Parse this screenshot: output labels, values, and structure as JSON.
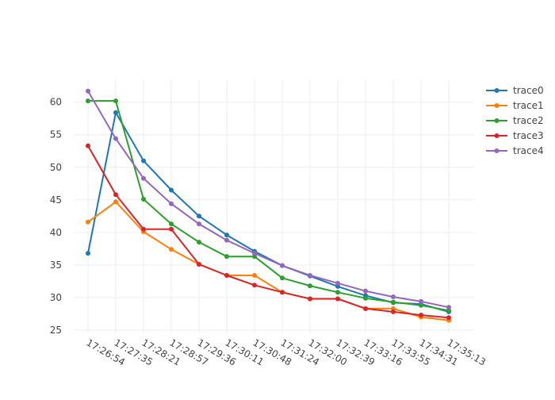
{
  "chart_data": {
    "type": "line",
    "title": "",
    "xlabel": "",
    "ylabel": "",
    "categories": [
      "17:26:54",
      "17:27:35",
      "17:28:21",
      "17:28:57",
      "17:29:36",
      "17:30:11",
      "17:30:48",
      "17:31:24",
      "17:32:00",
      "17:32:39",
      "17:33:16",
      "17:33:55",
      "17:34:31",
      "17:35:13"
    ],
    "ylim": [
      24.5,
      63.5
    ],
    "yticks": [
      25,
      30,
      35,
      40,
      45,
      50,
      55,
      60
    ],
    "grid": true,
    "legend_position": "top-right",
    "series": [
      {
        "name": "trace0",
        "color": "#1f77b4",
        "values": [
          36.8,
          58.4,
          51.0,
          46.5,
          42.5,
          39.6,
          37.1,
          34.9,
          33.3,
          31.7,
          30.3,
          29.2,
          29.0,
          27.8
        ]
      },
      {
        "name": "trace1",
        "color": "#ff7f0e",
        "values": [
          41.6,
          44.7,
          40.1,
          37.4,
          35.1,
          33.4,
          33.4,
          30.8,
          29.8,
          29.8,
          28.3,
          28.3,
          27.0,
          26.5
        ]
      },
      {
        "name": "trace2",
        "color": "#2ca02c",
        "values": [
          60.2,
          60.2,
          45.1,
          41.3,
          38.5,
          36.3,
          36.3,
          33.0,
          31.8,
          30.8,
          29.9,
          29.3,
          28.8,
          28.0
        ]
      },
      {
        "name": "trace3",
        "color": "#d62728",
        "values": [
          53.3,
          45.8,
          40.5,
          40.5,
          35.1,
          33.4,
          31.9,
          30.8,
          29.8,
          29.8,
          28.3,
          27.8,
          27.3,
          26.9
        ]
      },
      {
        "name": "trace4",
        "color": "#9467bd",
        "values": [
          61.7,
          54.4,
          48.3,
          44.4,
          41.3,
          38.8,
          36.8,
          34.9,
          33.4,
          32.2,
          31.0,
          30.1,
          29.4,
          28.5
        ]
      }
    ]
  }
}
